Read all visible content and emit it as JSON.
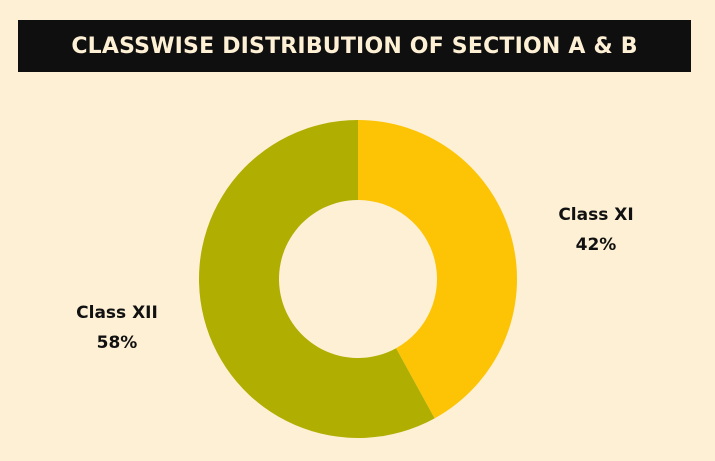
{
  "colors": {
    "background": "#FDF0D5",
    "banner": "#0F0F0F",
    "title_text": "#FDF0D5",
    "label_text": "#111111"
  },
  "chart_data": {
    "type": "pie",
    "style": "donut",
    "title": "CLASSWISE DISTRIBUTION OF SECTION A & B",
    "slices": [
      {
        "label": "Class XI",
        "value": 42,
        "value_label": "42%",
        "color": "#FCC405"
      },
      {
        "label": "Class XII",
        "value": 58,
        "value_label": "58%",
        "color": "#B0AE00"
      }
    ],
    "start_angle": "12 o'clock",
    "direction": "clockwise",
    "legend": "none"
  }
}
